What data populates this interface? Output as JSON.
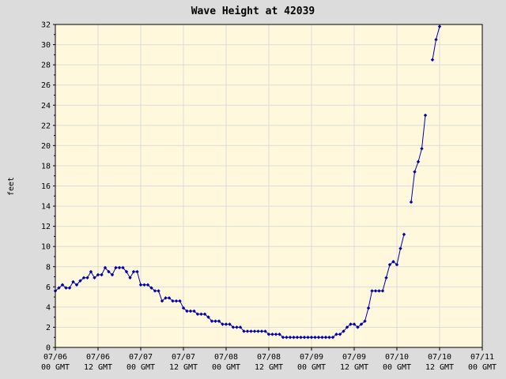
{
  "chart_data": {
    "type": "line",
    "title": "Wave Height at 42039",
    "ylabel": "feet",
    "xlabel": "",
    "ylim": [
      0,
      32
    ],
    "yticks": [
      0,
      2,
      4,
      6,
      8,
      10,
      12,
      14,
      16,
      18,
      20,
      22,
      24,
      26,
      28,
      30,
      32
    ],
    "xlim": [
      0,
      120
    ],
    "xticks": [
      {
        "x": 0,
        "line1": "07/06",
        "line2": "00 GMT"
      },
      {
        "x": 12,
        "line1": "07/06",
        "line2": "12 GMT"
      },
      {
        "x": 24,
        "line1": "07/07",
        "line2": "00 GMT"
      },
      {
        "x": 36,
        "line1": "07/07",
        "line2": "12 GMT"
      },
      {
        "x": 48,
        "line1": "07/08",
        "line2": "00 GMT"
      },
      {
        "x": 60,
        "line1": "07/08",
        "line2": "12 GMT"
      },
      {
        "x": 72,
        "line1": "07/09",
        "line2": "00 GMT"
      },
      {
        "x": 84,
        "line1": "07/09",
        "line2": "12 GMT"
      },
      {
        "x": 96,
        "line1": "07/10",
        "line2": "00 GMT"
      },
      {
        "x": 108,
        "line1": "07/10",
        "line2": "12 GMT"
      },
      {
        "x": 120,
        "line1": "07/11",
        "line2": "00 GMT"
      }
    ],
    "grid": true,
    "colors": {
      "line": "#0000aa",
      "plot_bg": "#fff8dc",
      "grid": "#dcdcdc",
      "page_bg": "#dcdcdc"
    },
    "series": [
      {
        "x": [
          0,
          1,
          2,
          3,
          4,
          5,
          6,
          7,
          8,
          9,
          10,
          11,
          12,
          13,
          14,
          15,
          16,
          17,
          18,
          19,
          20,
          21,
          22,
          23,
          24,
          25,
          26,
          27,
          28,
          29,
          30,
          31,
          32,
          33,
          34,
          35,
          36,
          37,
          38,
          39,
          40,
          41,
          42,
          43,
          44,
          45,
          46,
          47,
          48,
          49,
          50,
          51,
          52,
          53,
          54,
          55,
          56,
          57,
          58,
          59,
          60,
          61,
          62,
          63,
          64,
          65,
          66,
          67,
          68,
          69,
          70,
          71,
          72,
          73,
          74,
          75,
          76,
          77,
          78,
          79,
          80,
          81,
          82,
          83,
          84,
          85,
          86,
          87,
          88,
          89,
          90,
          91,
          92,
          93,
          94,
          95,
          96,
          97,
          98,
          99,
          100,
          101,
          102,
          103,
          104,
          105,
          106,
          107,
          108
        ],
        "values": [
          5.6,
          5.9,
          6.2,
          5.9,
          5.9,
          6.5,
          6.2,
          6.6,
          6.9,
          6.9,
          7.5,
          6.9,
          7.2,
          7.2,
          7.9,
          7.5,
          7.2,
          7.9,
          7.9,
          7.9,
          7.5,
          6.9,
          7.5,
          7.5,
          6.2,
          6.2,
          6.2,
          5.9,
          5.6,
          5.6,
          4.6,
          4.9,
          4.9,
          4.6,
          4.6,
          4.6,
          3.9,
          3.6,
          3.6,
          3.6,
          3.3,
          3.3,
          3.3,
          3.0,
          2.6,
          2.6,
          2.6,
          2.3,
          2.3,
          2.3,
          2.0,
          2.0,
          2.0,
          1.6,
          1.6,
          1.6,
          1.6,
          1.6,
          1.6,
          1.6,
          1.3,
          1.3,
          1.3,
          1.3,
          1.0,
          1.0,
          1.0,
          1.0,
          1.0,
          1.0,
          1.0,
          1.0,
          1.0,
          1.0,
          1.0,
          1.0,
          1.0,
          1.0,
          1.0,
          1.3,
          1.3,
          1.6,
          2.0,
          2.3,
          2.3,
          2.0,
          2.3,
          2.6,
          3.9,
          5.6,
          5.6,
          5.6,
          5.6,
          6.9,
          8.2,
          8.5,
          8.2,
          9.8,
          11.2,
          null,
          14.4,
          17.4,
          18.4,
          19.7,
          23.0,
          null,
          28.5,
          30.5,
          31.8
        ]
      }
    ]
  }
}
